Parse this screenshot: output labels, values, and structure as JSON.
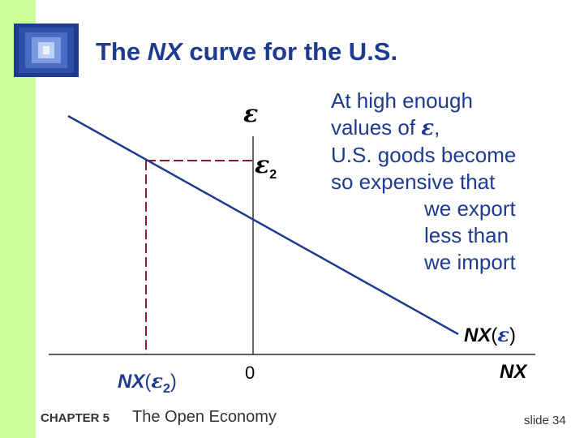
{
  "title": {
    "prefix": "The ",
    "nx": "NX",
    "suffix": " curve for the U.S."
  },
  "note": {
    "line1": "At high enough",
    "line2_pre": "values of ",
    "line2_eps": "ε",
    "line2_post": ",",
    "line3": "U.S. goods become",
    "line4": "so expensive that",
    "line5": "we export",
    "line6": "less than",
    "line7": "we import"
  },
  "labels": {
    "curve_nx": "NX",
    "curve_open": "(",
    "curve_eps": "ε",
    "curve_close": ")",
    "x_axis": "NX",
    "y_axis": "ε",
    "eps2_sym": "ε",
    "eps2_sub": "2",
    "origin": "0",
    "nx_eps2_nx": "NX",
    "nx_eps2_open": "(",
    "nx_eps2_eps": "ε",
    "nx_eps2_sub": "2",
    "nx_eps2_close": ")"
  },
  "footer": {
    "chapter": "CHAPTER 5",
    "chapter_title": "The Open Economy",
    "slide": "slide 34"
  },
  "colors": {
    "accent": "#1f3b8f",
    "band": "#ccff99",
    "dashed": "#8b1a2b"
  }
}
